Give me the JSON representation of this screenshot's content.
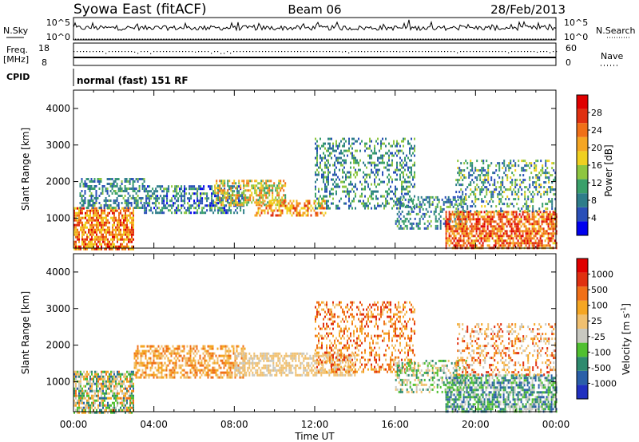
{
  "header": {
    "station": "Syowa East (fitACF)",
    "beam": "Beam 06",
    "date": "28/Feb/2013"
  },
  "labels": {
    "nsky": "N.Sky",
    "nsearch": "N.Search",
    "freq": "Freq.",
    "mhz": "[MHz]",
    "nave": "Nave",
    "cpid": "CPID",
    "cpid_value": "normal (fast) 151 RF",
    "y_label": "Slant Range [km]",
    "x_label": "Time UT",
    "power_label": "Power [dB]",
    "velocity_label": "Velocity [m s",
    "velocity_sup": "-1",
    "velocity_close": "]"
  },
  "noise_axis": {
    "left_ticks": [
      "10^5",
      "10^0"
    ],
    "right_ticks": [
      "10^5",
      "10^0"
    ]
  },
  "freq_axis": {
    "left_ticks": [
      "18",
      "8"
    ],
    "right_ticks": [
      "60",
      "0"
    ]
  },
  "chart_data": [
    {
      "type": "heatmap",
      "name": "power",
      "x_range_hours": [
        0,
        24
      ],
      "x_ticks": [
        "00:00",
        "04:00",
        "08:00",
        "12:00",
        "16:00",
        "20:00",
        "00:00"
      ],
      "y_ticks": [
        "1000",
        "2000",
        "3000",
        "4000"
      ],
      "ylim": [
        180,
        4500
      ],
      "colorbar": {
        "ticks": [
          "4",
          "8",
          "12",
          "16",
          "20",
          "24",
          "28"
        ],
        "colors": [
          "#0000ee",
          "#2a4fb8",
          "#2e7d8a",
          "#3aa06a",
          "#8ec640",
          "#f0d020",
          "#f5a623",
          "#f07018",
          "#e03010",
          "#e00000"
        ]
      },
      "clusters": [
        {
          "t": [
            0.0,
            3.0
          ],
          "r": [
            180,
            1300
          ],
          "level": [
            0.5,
            0.95
          ],
          "density": 0.75
        },
        {
          "t": [
            0.3,
            3.5
          ],
          "r": [
            1300,
            2100
          ],
          "level": [
            0.1,
            0.45
          ],
          "density": 0.45
        },
        {
          "t": [
            3.5,
            8.5
          ],
          "r": [
            1150,
            1900
          ],
          "level": [
            0.05,
            0.45
          ],
          "density": 0.55
        },
        {
          "t": [
            7.0,
            10.5
          ],
          "r": [
            1350,
            2050
          ],
          "level": [
            0.3,
            0.8
          ],
          "density": 0.55
        },
        {
          "t": [
            9.0,
            12.5
          ],
          "r": [
            1100,
            1500
          ],
          "level": [
            0.5,
            0.85
          ],
          "density": 0.5
        },
        {
          "t": [
            12.0,
            17.0
          ],
          "r": [
            1300,
            3200
          ],
          "level": [
            0.1,
            0.5
          ],
          "density": 0.35
        },
        {
          "t": [
            16.0,
            19.5
          ],
          "r": [
            700,
            1600
          ],
          "level": [
            0.1,
            0.45
          ],
          "density": 0.4
        },
        {
          "t": [
            18.5,
            24.0
          ],
          "r": [
            180,
            1200
          ],
          "level": [
            0.55,
            0.99
          ],
          "density": 0.7
        },
        {
          "t": [
            19.0,
            24.0
          ],
          "r": [
            1200,
            2600
          ],
          "level": [
            0.1,
            0.55
          ],
          "density": 0.35
        }
      ]
    },
    {
      "type": "heatmap",
      "name": "velocity",
      "x_range_hours": [
        0,
        24
      ],
      "x_ticks": [
        "00:00",
        "04:00",
        "08:00",
        "12:00",
        "16:00",
        "20:00",
        "00:00"
      ],
      "y_ticks": [
        "1000",
        "2000",
        "3000",
        "4000"
      ],
      "ylim": [
        180,
        4500
      ],
      "colorbar": {
        "ticks": [
          "1000",
          "500",
          "100",
          "25",
          "-25",
          "-100",
          "-500",
          "-1000"
        ],
        "colors": [
          "#2030c0",
          "#2a5fa8",
          "#2e8a6e",
          "#50c030",
          "#c8c8c0",
          "#f0c070",
          "#f5a623",
          "#f07018",
          "#e03010",
          "#e00000"
        ]
      },
      "clusters": [
        {
          "t": [
            0.0,
            3.0
          ],
          "r": [
            180,
            1300
          ],
          "level": [
            0.15,
            0.75
          ],
          "density": 0.7
        },
        {
          "t": [
            3.0,
            8.5
          ],
          "r": [
            1100,
            2000
          ],
          "level": [
            0.5,
            0.8
          ],
          "density": 0.55
        },
        {
          "t": [
            8.0,
            14.0
          ],
          "r": [
            1200,
            1800
          ],
          "level": [
            0.48,
            0.55
          ],
          "density": 0.6
        },
        {
          "t": [
            12.0,
            17.0
          ],
          "r": [
            1300,
            3200
          ],
          "level": [
            0.5,
            0.9
          ],
          "density": 0.35
        },
        {
          "t": [
            16.0,
            19.5
          ],
          "r": [
            700,
            1600
          ],
          "level": [
            0.2,
            0.6
          ],
          "density": 0.4
        },
        {
          "t": [
            18.5,
            24.0
          ],
          "r": [
            180,
            1200
          ],
          "level": [
            0.1,
            0.5
          ],
          "density": 0.65
        },
        {
          "t": [
            19.0,
            24.0
          ],
          "r": [
            1200,
            2600
          ],
          "level": [
            0.4,
            0.9
          ],
          "density": 0.3
        }
      ]
    }
  ]
}
